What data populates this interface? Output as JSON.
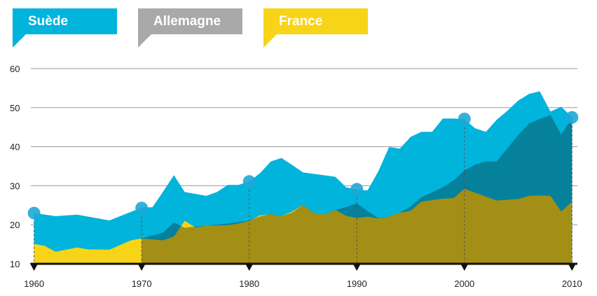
{
  "legend": {
    "items": [
      {
        "label": "Suède",
        "color": "#00b4dc"
      },
      {
        "label": "Allemagne",
        "color": "#a9a9a9"
      },
      {
        "label": "France",
        "color": "#f7d417"
      }
    ]
  },
  "chart_data": {
    "type": "area",
    "title": "",
    "xlabel": "",
    "ylabel": "",
    "xlim": [
      1959.7,
      2010.5
    ],
    "ylim": [
      10,
      60
    ],
    "yticks": [
      10,
      20,
      30,
      40,
      50,
      60
    ],
    "xticks": [
      1960,
      1970,
      1980,
      1990,
      2000,
      2010
    ],
    "grid": true,
    "legend_position": "top-left",
    "series": [
      {
        "name": "Suède",
        "color": "#00b4dc",
        "x": [
          1960,
          1962,
          1964,
          1967,
          1970,
          1971,
          1972,
          1973,
          1974,
          1976,
          1977,
          1978,
          1979,
          1980,
          1981,
          1982,
          1983,
          1984,
          1985,
          1988,
          1989,
          1990,
          1991,
          1992,
          1993,
          1994,
          1995,
          1996,
          1997,
          1998,
          1999,
          2000,
          2001,
          2002,
          2003,
          2004,
          2005,
          2006,
          2007,
          2008,
          2009,
          2010
        ],
        "y": [
          23,
          22.2,
          22.6,
          21.1,
          24.4,
          24.5,
          28.5,
          32.7,
          28.4,
          27.4,
          28.4,
          30.2,
          30.2,
          31.1,
          33.2,
          36.2,
          37.1,
          35.3,
          33.4,
          32.3,
          29.6,
          29,
          28.8,
          33.7,
          39.9,
          39.5,
          42.5,
          43.8,
          43.8,
          47.2,
          47.2,
          47,
          44.7,
          43.8,
          46.9,
          49.2,
          51.8,
          53.5,
          54.2,
          49,
          50.2,
          47.6
        ]
      },
      {
        "name": "Allemagne",
        "color": "#06819c",
        "x": [
          1970,
          1972,
          1973,
          1974,
          1976,
          1978,
          1980,
          1981,
          1982,
          1983,
          1984,
          1985,
          1986,
          1987,
          1988,
          1989,
          1990,
          1991,
          1992,
          1993,
          1994,
          1995,
          1996,
          1997,
          1998,
          1999,
          2000,
          2001,
          2002,
          2003,
          2004,
          2005,
          2006,
          2007,
          2008,
          2009,
          2010
        ],
        "y": [
          16.5,
          18,
          20.6,
          19.2,
          19.8,
          20.3,
          21.1,
          22.1,
          22.8,
          22.2,
          23.1,
          25.1,
          23,
          22.6,
          23.8,
          24.5,
          25.5,
          23.5,
          21.7,
          22.1,
          23.1,
          24.7,
          27,
          28.3,
          29.6,
          31.4,
          33.9,
          35.4,
          36.2,
          36.2,
          39.6,
          43,
          45.9,
          47.1,
          48.1,
          43.1,
          47.3
        ]
      },
      {
        "name": "France",
        "color": "#f7d417",
        "x": [
          1960,
          1961,
          1962,
          1964,
          1965,
          1967,
          1969,
          1970,
          1972,
          1973,
          1974,
          1975,
          1976,
          1978,
          1979,
          1980,
          1981,
          1982,
          1983,
          1984,
          1985,
          1986,
          1987,
          1988,
          1989,
          1990,
          1991,
          1992,
          1993,
          1994,
          1995,
          1996,
          1997,
          1998,
          1999,
          2000,
          2001,
          2002,
          2003,
          2004,
          2005,
          2006,
          2007,
          2008,
          2009,
          2010
        ],
        "y": [
          15.1,
          14.6,
          13.1,
          14.2,
          13.7,
          13.6,
          16,
          16.5,
          16,
          17,
          21,
          19.3,
          19.8,
          19.9,
          20.3,
          21,
          22.4,
          22.7,
          22.2,
          23.4,
          25.1,
          23,
          22.6,
          23.8,
          22.3,
          21.7,
          22.1,
          21.6,
          22.1,
          23.1,
          23.6,
          25.9,
          26.3,
          26.7,
          26.8,
          29.2,
          28.2,
          27.2,
          26.2,
          26.4,
          26.6,
          27.4,
          27.5,
          27.4,
          23.4,
          25.9
        ]
      }
    ],
    "overlap_color": "#a38f16",
    "markers": [
      {
        "x": 1960,
        "y": 23
      },
      {
        "x": 1970,
        "y": 24.3
      },
      {
        "x": 1980,
        "y": 31.1
      },
      {
        "x": 1990,
        "y": 29.1
      },
      {
        "x": 2000,
        "y": 47.1
      },
      {
        "x": 2010,
        "y": 47.5
      }
    ]
  }
}
